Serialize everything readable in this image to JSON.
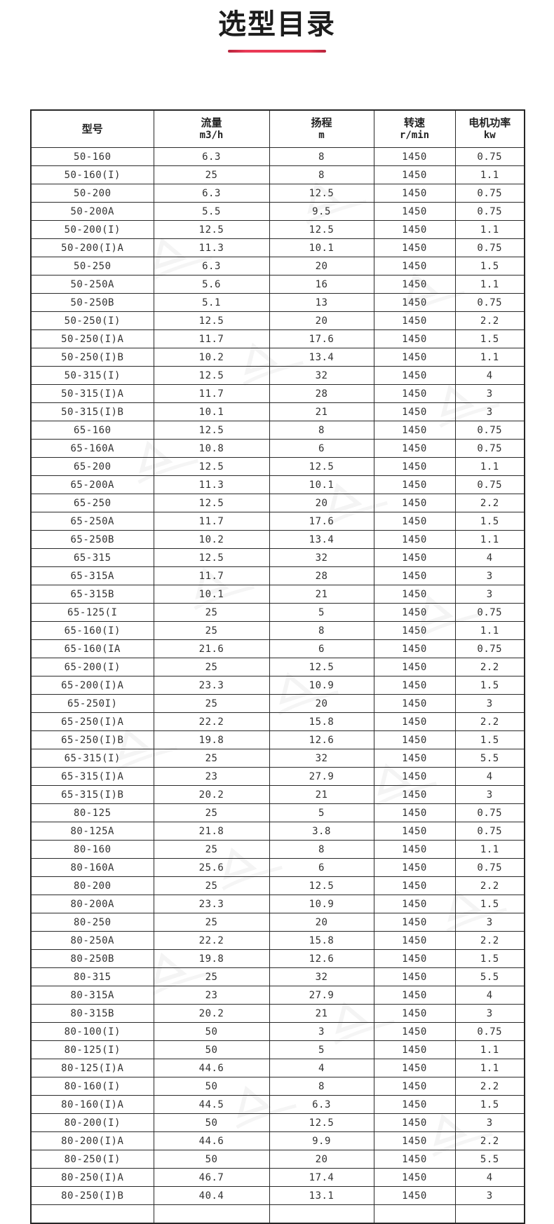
{
  "page": {
    "title": "选型目录"
  },
  "colors": {
    "accent_line": "#e8374f",
    "table_border": "#2a2a2a",
    "text": "#323232"
  },
  "table": {
    "columns": [
      {
        "label": "型号",
        "sub": ""
      },
      {
        "label": "流量",
        "sub": "m3/h"
      },
      {
        "label": "扬程",
        "sub": "m"
      },
      {
        "label": "转速",
        "sub": "r/min"
      },
      {
        "label": "电机功率",
        "sub": "kw"
      }
    ],
    "rows": [
      [
        "50-160",
        "6.3",
        "8",
        "1450",
        "0.75"
      ],
      [
        "50-160(I)",
        "25",
        "8",
        "1450",
        "1.1"
      ],
      [
        "50-200",
        "6.3",
        "12.5",
        "1450",
        "0.75"
      ],
      [
        "50-200A",
        "5.5",
        "9.5",
        "1450",
        "0.75"
      ],
      [
        "50-200(I)",
        "12.5",
        "12.5",
        "1450",
        "1.1"
      ],
      [
        "50-200(I)A",
        "11.3",
        "10.1",
        "1450",
        "0.75"
      ],
      [
        "50-250",
        "6.3",
        "20",
        "1450",
        "1.5"
      ],
      [
        "50-250A",
        "5.6",
        "16",
        "1450",
        "1.1"
      ],
      [
        "50-250B",
        "5.1",
        "13",
        "1450",
        "0.75"
      ],
      [
        "50-250(I)",
        "12.5",
        "20",
        "1450",
        "2.2"
      ],
      [
        "50-250(I)A",
        "11.7",
        "17.6",
        "1450",
        "1.5"
      ],
      [
        "50-250(I)B",
        "10.2",
        "13.4",
        "1450",
        "1.1"
      ],
      [
        "50-315(I)",
        "12.5",
        "32",
        "1450",
        "4"
      ],
      [
        "50-315(I)A",
        "11.7",
        "28",
        "1450",
        "3"
      ],
      [
        "50-315(I)B",
        "10.1",
        "21",
        "1450",
        "3"
      ],
      [
        "65-160",
        "12.5",
        "8",
        "1450",
        "0.75"
      ],
      [
        "65-160A",
        "10.8",
        "6",
        "1450",
        "0.75"
      ],
      [
        "65-200",
        "12.5",
        "12.5",
        "1450",
        "1.1"
      ],
      [
        "65-200A",
        "11.3",
        "10.1",
        "1450",
        "0.75"
      ],
      [
        "65-250",
        "12.5",
        "20",
        "1450",
        "2.2"
      ],
      [
        "65-250A",
        "11.7",
        "17.6",
        "1450",
        "1.5"
      ],
      [
        "65-250B",
        "10.2",
        "13.4",
        "1450",
        "1.1"
      ],
      [
        "65-315",
        "12.5",
        "32",
        "1450",
        "4"
      ],
      [
        "65-315A",
        "11.7",
        "28",
        "1450",
        "3"
      ],
      [
        "65-315B",
        "10.1",
        "21",
        "1450",
        "3"
      ],
      [
        "65-125(I",
        "25",
        "5",
        "1450",
        "0.75"
      ],
      [
        "65-160(I)",
        "25",
        "8",
        "1450",
        "1.1"
      ],
      [
        "65-160(IA",
        "21.6",
        "6",
        "1450",
        "0.75"
      ],
      [
        "65-200(I)",
        "25",
        "12.5",
        "1450",
        "2.2"
      ],
      [
        "65-200(I)A",
        "23.3",
        "10.9",
        "1450",
        "1.5"
      ],
      [
        "65-250I)",
        "25",
        "20",
        "1450",
        "3"
      ],
      [
        "65-250(I)A",
        "22.2",
        "15.8",
        "1450",
        "2.2"
      ],
      [
        "65-250(I)B",
        "19.8",
        "12.6",
        "1450",
        "1.5"
      ],
      [
        "65-315(I)",
        "25",
        "32",
        "1450",
        "5.5"
      ],
      [
        "65-315(I)A",
        "23",
        "27.9",
        "1450",
        "4"
      ],
      [
        "65-315(I)B",
        "20.2",
        "21",
        "1450",
        "3"
      ],
      [
        "80-125",
        "25",
        "5",
        "1450",
        "0.75"
      ],
      [
        "80-125A",
        "21.8",
        "3.8",
        "1450",
        "0.75"
      ],
      [
        "80-160",
        "25",
        "8",
        "1450",
        "1.1"
      ],
      [
        "80-160A",
        "25.6",
        "6",
        "1450",
        "0.75"
      ],
      [
        "80-200",
        "25",
        "12.5",
        "1450",
        "2.2"
      ],
      [
        "80-200A",
        "23.3",
        "10.9",
        "1450",
        "1.5"
      ],
      [
        "80-250",
        "25",
        "20",
        "1450",
        "3"
      ],
      [
        "80-250A",
        "22.2",
        "15.8",
        "1450",
        "2.2"
      ],
      [
        "80-250B",
        "19.8",
        "12.6",
        "1450",
        "1.5"
      ],
      [
        "80-315",
        "25",
        "32",
        "1450",
        "5.5"
      ],
      [
        "80-315A",
        "23",
        "27.9",
        "1450",
        "4"
      ],
      [
        "80-315B",
        "20.2",
        "21",
        "1450",
        "3"
      ],
      [
        "80-100(I)",
        "50",
        "3",
        "1450",
        "0.75"
      ],
      [
        "80-125(I)",
        "50",
        "5",
        "1450",
        "1.1"
      ],
      [
        "80-125(I)A",
        "44.6",
        "4",
        "1450",
        "1.1"
      ],
      [
        "80-160(I)",
        "50",
        "8",
        "1450",
        "2.2"
      ],
      [
        "80-160(I)A",
        "44.5",
        "6.3",
        "1450",
        "1.5"
      ],
      [
        "80-200(I)",
        "50",
        "12.5",
        "1450",
        "3"
      ],
      [
        "80-200(I)A",
        "44.6",
        "9.9",
        "1450",
        "2.2"
      ],
      [
        "80-250(I)",
        "50",
        "20",
        "1450",
        "5.5"
      ],
      [
        "80-250(I)A",
        "46.7",
        "17.4",
        "1450",
        "4"
      ],
      [
        "80-250(I)B",
        "40.4",
        "13.1",
        "1450",
        "3"
      ]
    ]
  }
}
